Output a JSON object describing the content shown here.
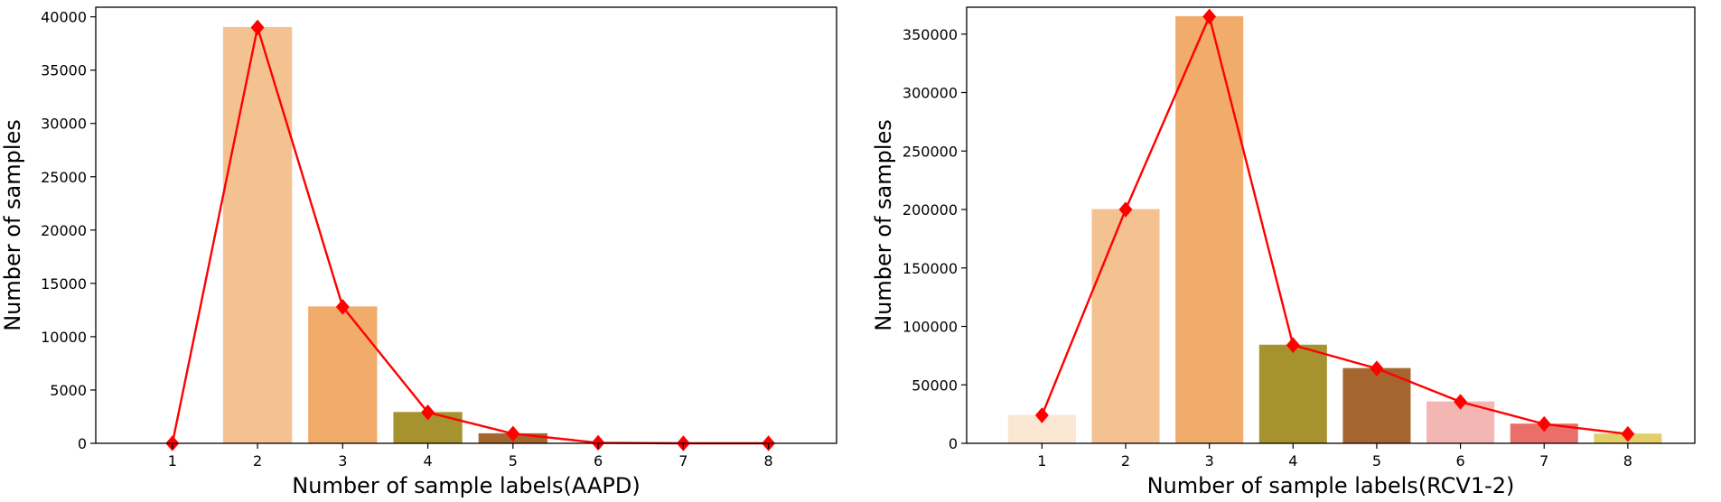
{
  "chart_data": [
    {
      "type": "bar",
      "xlabel": "Number of sample labels(AAPD)",
      "ylabel": "Number of samples",
      "categories": [
        "1",
        "2",
        "3",
        "4",
        "5",
        "6",
        "7",
        "8"
      ],
      "xlim": [
        0.1,
        8.8
      ],
      "ylim": [
        0,
        40900
      ],
      "yticks": [
        0,
        5000,
        10000,
        15000,
        20000,
        25000,
        30000,
        35000,
        40000
      ],
      "series": [
        {
          "type": "bar",
          "values": [
            0,
            39000,
            12800,
            2900,
            900,
            50,
            0,
            0
          ],
          "colors": [
            "#f4c191",
            "#f4c191",
            "#f1ab6b",
            "#a6922e",
            "#a5652e",
            "#f4b6b3",
            "#ea6e6a",
            "#e3ce6a"
          ]
        },
        {
          "type": "line",
          "color": "#ff0000",
          "marker": "diamond",
          "values": [
            0,
            39000,
            12800,
            2900,
            900,
            50,
            0,
            0
          ]
        }
      ]
    },
    {
      "type": "bar",
      "xlabel": "Number of sample labels(RCV1-2)",
      "ylabel": "Number of samples",
      "categories": [
        "1",
        "2",
        "3",
        "4",
        "5",
        "6",
        "7",
        "8"
      ],
      "xlim": [
        0.1,
        8.8
      ],
      "ylim": [
        0,
        373000
      ],
      "yticks": [
        0,
        50000,
        100000,
        150000,
        200000,
        250000,
        300000,
        350000
      ],
      "series": [
        {
          "type": "bar",
          "values": [
            24000,
            200000,
            365000,
            84000,
            64000,
            35500,
            16500,
            8000
          ],
          "colors": [
            "#fbe5d3",
            "#f4c191",
            "#f1ab6b",
            "#a6922e",
            "#a5652e",
            "#f4b6b3",
            "#ea6e6a",
            "#e3ce6a"
          ]
        },
        {
          "type": "line",
          "color": "#ff0000",
          "marker": "diamond",
          "values": [
            24000,
            200000,
            365000,
            84000,
            64000,
            35500,
            16500,
            8000
          ]
        }
      ]
    }
  ]
}
